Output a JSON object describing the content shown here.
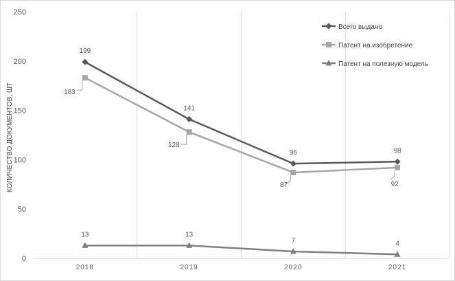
{
  "chart_data": {
    "type": "line",
    "title": "",
    "xlabel": "",
    "ylabel": "КОЛИЧЕСТВО ДОКУМЕНТОВ, ШТ",
    "categories": [
      "2018",
      "2019",
      "2020",
      "2021"
    ],
    "ylim": [
      0,
      250
    ],
    "yticks": [
      0,
      50,
      100,
      150,
      200,
      250
    ],
    "grid": "vertical",
    "legend_position": "top-right",
    "series": [
      {
        "name": "Всего выдано",
        "values": [
          199,
          141,
          96,
          98
        ],
        "color": "#595959",
        "marker": "diamond"
      },
      {
        "name": "Патент на изобретение",
        "values": [
          183,
          128,
          87,
          92
        ],
        "color": "#a6a6a6",
        "marker": "square"
      },
      {
        "name": "Патент на полезную модель",
        "values": [
          13,
          13,
          7,
          4
        ],
        "color": "#7f7f7f",
        "marker": "triangle"
      }
    ]
  }
}
